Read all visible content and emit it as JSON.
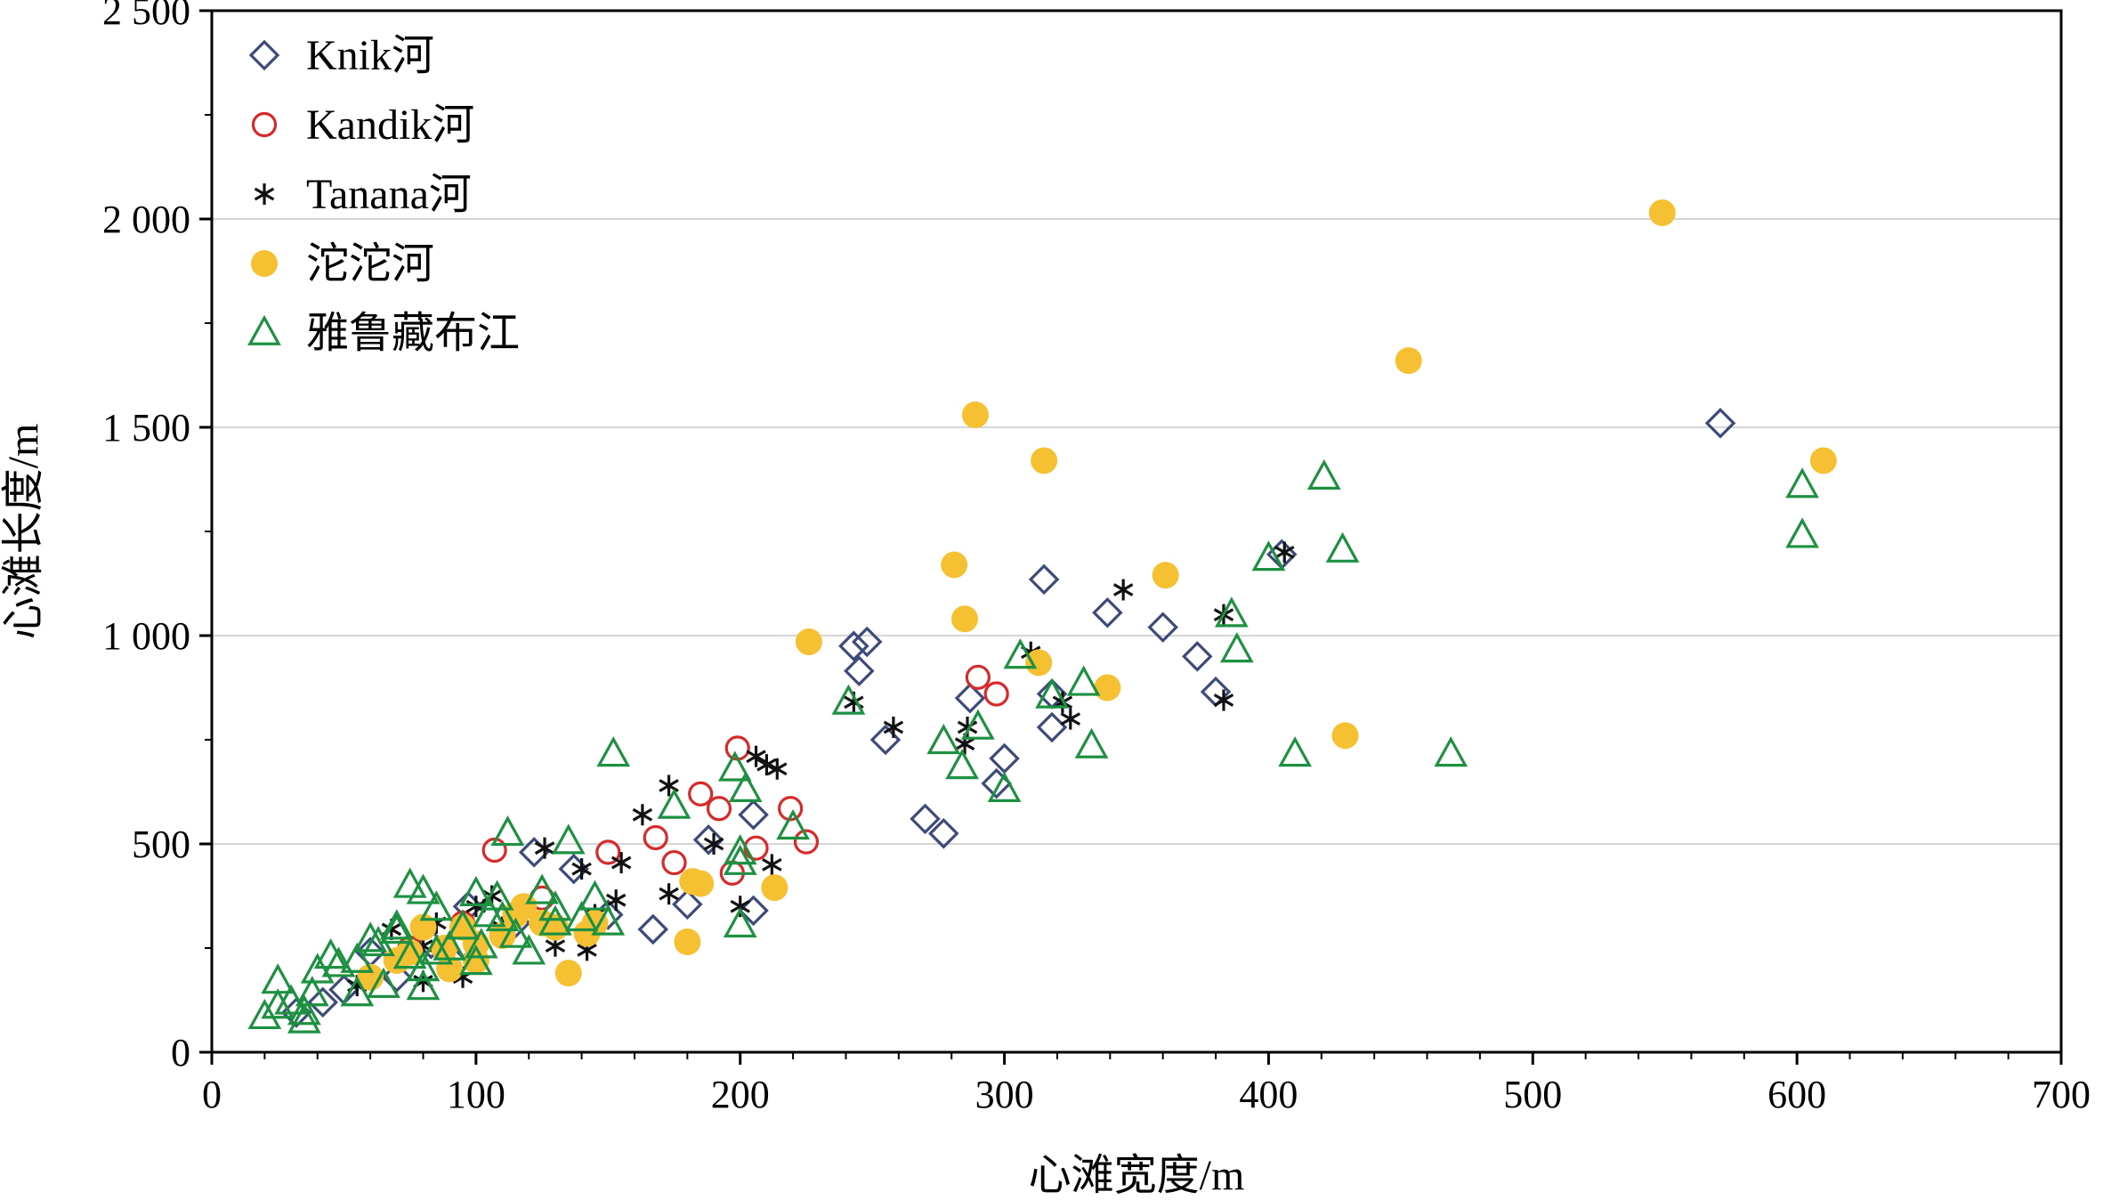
{
  "chart_data": {
    "type": "scatter",
    "xlabel": "心滩宽度/m",
    "ylabel": "心滩长度/m",
    "xlim": [
      0,
      700
    ],
    "ylim": [
      0,
      2500
    ],
    "xticks": [
      0,
      100,
      200,
      300,
      400,
      500,
      600,
      700
    ],
    "yticks": [
      0,
      500,
      1000,
      1500,
      2000,
      2500
    ],
    "xtick_labels": [
      "0",
      "100",
      "200",
      "300",
      "400",
      "500",
      "600",
      "700"
    ],
    "ytick_labels": [
      "0",
      "500",
      "1 000",
      "1 500",
      "2 000",
      "2 500"
    ],
    "grid": "horizontal",
    "legend_position": "top-left",
    "series": [
      {
        "name": "Knik河",
        "marker": "diamond",
        "color": "#3d4a7a",
        "points": [
          [
            571,
            1510
          ],
          [
            405,
            1195
          ],
          [
            315,
            1135
          ],
          [
            339,
            1055
          ],
          [
            360,
            1020
          ],
          [
            373,
            950
          ],
          [
            380,
            865
          ],
          [
            248,
            985
          ],
          [
            243,
            975
          ],
          [
            245,
            915
          ],
          [
            255,
            750
          ],
          [
            287,
            850
          ],
          [
            318,
            860
          ],
          [
            318,
            780
          ],
          [
            270,
            560
          ],
          [
            277,
            525
          ],
          [
            300,
            705
          ],
          [
            297,
            645
          ],
          [
            205,
            570
          ],
          [
            205,
            340
          ],
          [
            180,
            355
          ],
          [
            167,
            295
          ],
          [
            188,
            510
          ],
          [
            137,
            440
          ],
          [
            122,
            480
          ],
          [
            97,
            350
          ],
          [
            83,
            260
          ],
          [
            60,
            240
          ],
          [
            70,
            180
          ],
          [
            50,
            150
          ],
          [
            42,
            120
          ],
          [
            32,
            95
          ],
          [
            95,
            260
          ],
          [
            115,
            310
          ],
          [
            150,
            330
          ]
        ]
      },
      {
        "name": "Kandik河",
        "marker": "circle-open",
        "color": "#d62b2b",
        "points": [
          [
            290,
            900
          ],
          [
            297,
            860
          ],
          [
            199,
            730
          ],
          [
            219,
            585
          ],
          [
            225,
            505
          ],
          [
            185,
            620
          ],
          [
            192,
            585
          ],
          [
            206,
            490
          ],
          [
            197,
            430
          ],
          [
            168,
            515
          ],
          [
            175,
            455
          ],
          [
            107,
            485
          ],
          [
            150,
            480
          ],
          [
            125,
            370
          ],
          [
            95,
            310
          ],
          [
            75,
            250
          ]
        ]
      },
      {
        "name": "Tanana河",
        "marker": "asterisk",
        "color": "#111111",
        "points": [
          [
            406,
            1200
          ],
          [
            345,
            1110
          ],
          [
            383,
            1050
          ],
          [
            383,
            845
          ],
          [
            310,
            960
          ],
          [
            322,
            840
          ],
          [
            325,
            800
          ],
          [
            258,
            780
          ],
          [
            243,
            840
          ],
          [
            286,
            780
          ],
          [
            285,
            740
          ],
          [
            206,
            710
          ],
          [
            210,
            690
          ],
          [
            214,
            680
          ],
          [
            173,
            640
          ],
          [
            163,
            570
          ],
          [
            190,
            500
          ],
          [
            173,
            380
          ],
          [
            200,
            350
          ],
          [
            212,
            450
          ],
          [
            155,
            455
          ],
          [
            145,
            330
          ],
          [
            126,
            490
          ],
          [
            140,
            440
          ],
          [
            153,
            365
          ],
          [
            142,
            245
          ],
          [
            130,
            255
          ],
          [
            106,
            375
          ],
          [
            100,
            350
          ],
          [
            68,
            295
          ],
          [
            85,
            310
          ],
          [
            80,
            255
          ],
          [
            95,
            180
          ],
          [
            80,
            170
          ],
          [
            55,
            160
          ],
          [
            110,
            300
          ]
        ]
      },
      {
        "name": "沱沱河",
        "marker": "circle-filled",
        "color": "#f5c133",
        "points": [
          [
            549,
            2015
          ],
          [
            453,
            1660
          ],
          [
            610,
            1420
          ],
          [
            289,
            1530
          ],
          [
            315,
            1420
          ],
          [
            281,
            1170
          ],
          [
            361,
            1145
          ],
          [
            285,
            1040
          ],
          [
            226,
            985
          ],
          [
            313,
            935
          ],
          [
            339,
            875
          ],
          [
            429,
            760
          ],
          [
            182,
            410
          ],
          [
            185,
            405
          ],
          [
            213,
            395
          ],
          [
            180,
            265
          ],
          [
            135,
            190
          ],
          [
            142,
            285
          ],
          [
            125,
            310
          ],
          [
            115,
            330
          ],
          [
            95,
            300
          ],
          [
            88,
            250
          ],
          [
            90,
            200
          ],
          [
            70,
            220
          ],
          [
            100,
            260
          ],
          [
            110,
            280
          ],
          [
            130,
            300
          ],
          [
            80,
            300
          ],
          [
            60,
            180
          ],
          [
            75,
            240
          ],
          [
            100,
            220
          ],
          [
            118,
            350
          ],
          [
            145,
            310
          ]
        ]
      },
      {
        "name": "雅鲁藏布江",
        "marker": "triangle",
        "color": "#1d9141",
        "points": [
          [
            421,
            1380
          ],
          [
            428,
            1205
          ],
          [
            400,
            1185
          ],
          [
            602,
            1360
          ],
          [
            602,
            1240
          ],
          [
            386,
            1050
          ],
          [
            388,
            965
          ],
          [
            306,
            950
          ],
          [
            330,
            885
          ],
          [
            318,
            855
          ],
          [
            290,
            780
          ],
          [
            277,
            745
          ],
          [
            284,
            685
          ],
          [
            300,
            630
          ],
          [
            333,
            735
          ],
          [
            410,
            715
          ],
          [
            469,
            715
          ],
          [
            241,
            840
          ],
          [
            152,
            715
          ],
          [
            220,
            540
          ],
          [
            198,
            680
          ],
          [
            202,
            630
          ],
          [
            175,
            590
          ],
          [
            200,
            480
          ],
          [
            200,
            455
          ],
          [
            200,
            305
          ],
          [
            135,
            505
          ],
          [
            112,
            525
          ],
          [
            108,
            370
          ],
          [
            125,
            385
          ],
          [
            130,
            310
          ],
          [
            145,
            370
          ],
          [
            150,
            310
          ],
          [
            100,
            380
          ],
          [
            105,
            330
          ],
          [
            115,
            280
          ],
          [
            120,
            240
          ],
          [
            102,
            255
          ],
          [
            100,
            215
          ],
          [
            90,
            250
          ],
          [
            75,
            400
          ],
          [
            80,
            385
          ],
          [
            85,
            345
          ],
          [
            70,
            290
          ],
          [
            60,
            270
          ],
          [
            63,
            260
          ],
          [
            80,
            200
          ],
          [
            85,
            240
          ],
          [
            80,
            155
          ],
          [
            70,
            300
          ],
          [
            55,
            220
          ],
          [
            45,
            230
          ],
          [
            48,
            210
          ],
          [
            40,
            195
          ],
          [
            38,
            140
          ],
          [
            35,
            95
          ],
          [
            35,
            75
          ],
          [
            25,
            110
          ],
          [
            25,
            170
          ],
          [
            20,
            85
          ],
          [
            30,
            120
          ],
          [
            55,
            140
          ],
          [
            65,
            160
          ],
          [
            75,
            230
          ],
          [
            95,
            300
          ],
          [
            110,
            320
          ],
          [
            130,
            345
          ],
          [
            140,
            320
          ]
        ]
      }
    ]
  }
}
